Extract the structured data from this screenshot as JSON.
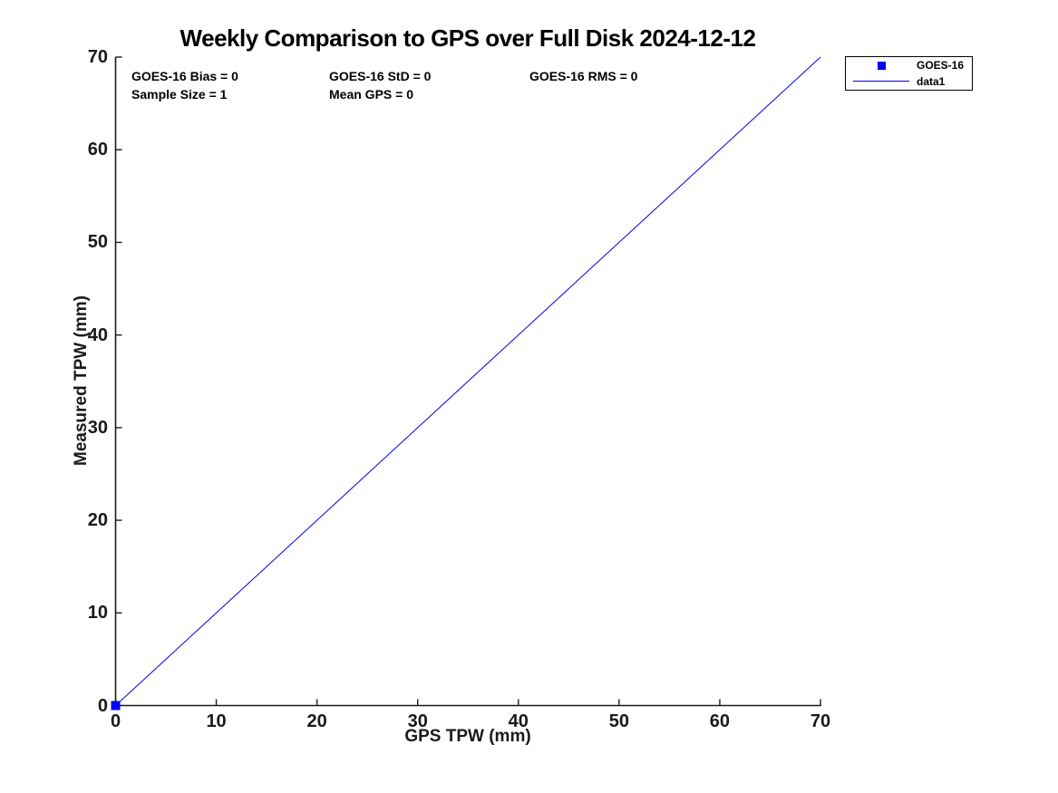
{
  "chart_data": {
    "type": "line",
    "title": "Weekly Comparison to GPS over Full Disk 2024-12-12",
    "xlabel": "GPS TPW (mm)",
    "ylabel": "Measured TPW (mm)",
    "xlim": [
      0,
      70
    ],
    "ylim": [
      0,
      70
    ],
    "xticks": [
      0,
      10,
      20,
      30,
      40,
      50,
      60,
      70
    ],
    "yticks": [
      0,
      10,
      20,
      30,
      40,
      50,
      60,
      70
    ],
    "grid": false,
    "annotations": [
      "GOES-16 Bias = 0",
      "GOES-16 StD = 0",
      "GOES-16 RMS = 0",
      "Sample Size = 1",
      "Mean GPS = 0"
    ],
    "legend": {
      "position": "outside-top-right",
      "entries": [
        {
          "label": "GOES-16",
          "swatch": "square",
          "color": "#0000ff"
        },
        {
          "label": "data1",
          "swatch": "line",
          "color": "#0000ee"
        }
      ]
    },
    "series": [
      {
        "name": "GOES-16",
        "plot": "scatter",
        "marker": "square",
        "color": "#0000ff",
        "points": [
          [
            0,
            0
          ]
        ]
      },
      {
        "name": "data1",
        "plot": "line",
        "color": "#0000ee",
        "points": [
          [
            0,
            0
          ],
          [
            70,
            70
          ]
        ]
      }
    ]
  },
  "colors": {
    "background": "#ffffff",
    "axis": "#1a1a1a",
    "text": "#000000",
    "marker": "#0000ff",
    "line": "#0000ee"
  }
}
